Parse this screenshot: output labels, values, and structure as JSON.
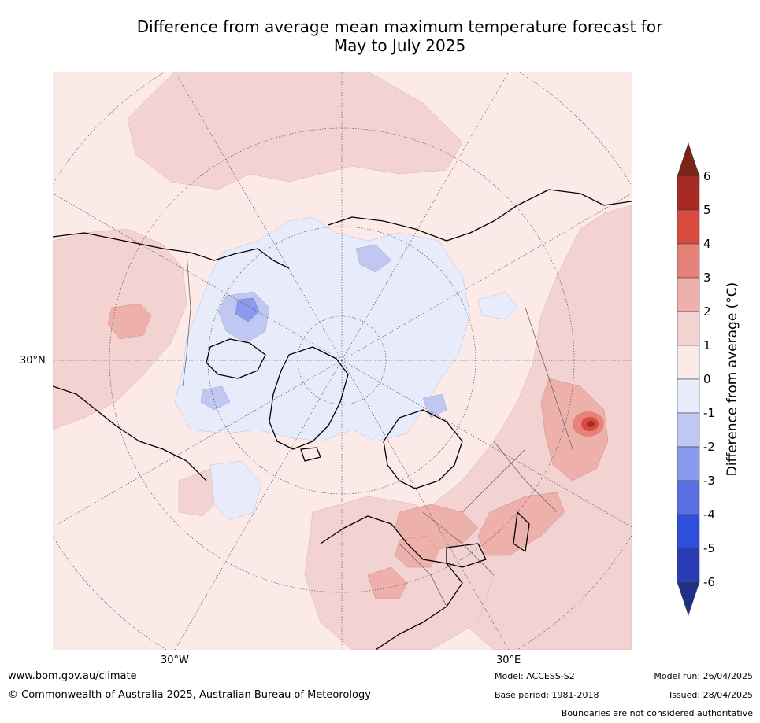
{
  "title": {
    "line1": "Difference from average mean maximum temperature forecast for",
    "line2": "May to July 2025"
  },
  "map": {
    "projection": "north polar stereographic",
    "labels": {
      "lat_30n": "30°N",
      "lon_30w": "30°W",
      "lon_30e": "30°E"
    }
  },
  "colorbar": {
    "title": "Difference from average ($^\\circ$C)",
    "title_display": "Difference from average (°C)",
    "ticks": [
      "6",
      "5",
      "4",
      "3",
      "2",
      "1",
      "0",
      "-1",
      "-2",
      "-3",
      "-4",
      "-5",
      "-6"
    ],
    "colors": [
      "#7b2318",
      "#a82a23",
      "#d94b3f",
      "#e5837a",
      "#edb0aa",
      "#f3d3d1",
      "#fbeae8",
      "#e8ecfa",
      "#c0c8f2",
      "#8a9bee",
      "#5a70e2",
      "#2e4fdc",
      "#2a3cb5",
      "#1f2f86"
    ]
  },
  "footer": {
    "website": "www.bom.gov.au/climate",
    "copyright": "© Commonwealth of Australia 2025, Australian Bureau of Meteorology",
    "model": "Model: ACCESS-S2",
    "base_period": "Base period: 1981-2018",
    "model_run": "Model run: 26/04/2025",
    "issued": "Issued: 28/04/2025",
    "disclaimer": "Boundaries are not considered authoritative"
  }
}
